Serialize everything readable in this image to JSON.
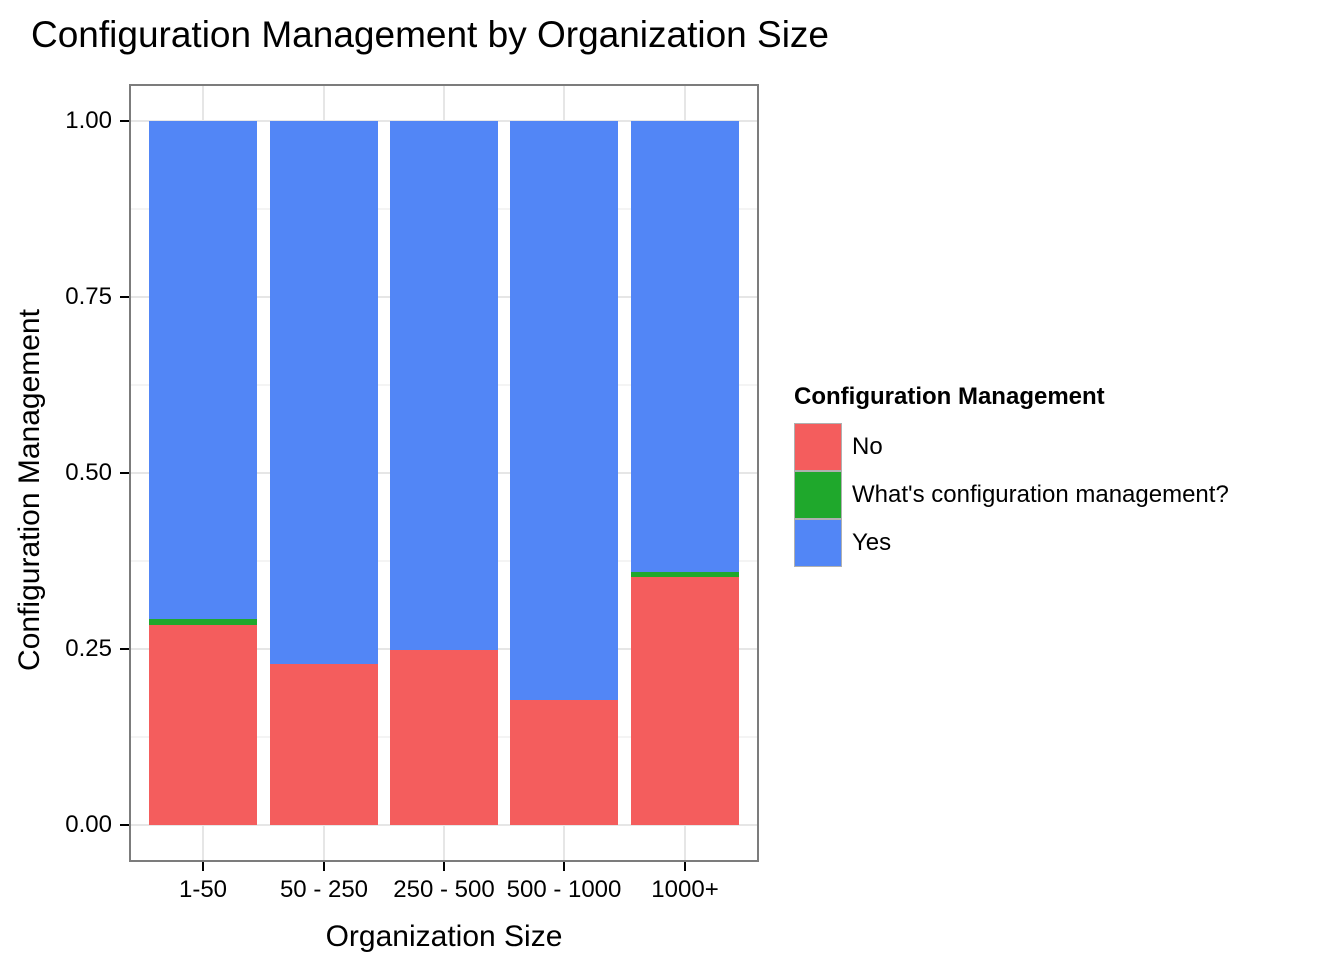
{
  "title": "Configuration Management by Organization Size",
  "chart_data": {
    "type": "bar",
    "stacked": true,
    "normalized": true,
    "title": "Configuration Management by Organization Size",
    "xlabel": "Organization Size",
    "ylabel": "Configuration Management",
    "categories": [
      "1-50",
      "50 - 250",
      "250 - 500",
      "500 - 1000",
      "1000+"
    ],
    "series": [
      {
        "name": "No",
        "color": "#f45d5d",
        "values": [
          0.284,
          0.228,
          0.248,
          0.178,
          0.353
        ]
      },
      {
        "name": "What's configuration management?",
        "color": "#1fa82c",
        "values": [
          0.009,
          0.0,
          0.0,
          0.0,
          0.007
        ]
      },
      {
        "name": "Yes",
        "color": "#5286f6",
        "values": [
          0.707,
          0.772,
          0.752,
          0.822,
          0.64
        ]
      }
    ],
    "ylim": [
      0,
      1
    ],
    "yticks": {
      "major": [
        0,
        0.25,
        0.5,
        0.75,
        1.0
      ],
      "minor": [
        0.125,
        0.375,
        0.625,
        0.875
      ],
      "labels": [
        "0.00",
        "0.25",
        "0.50",
        "0.75",
        "1.00"
      ]
    },
    "grid": "horizontal major+minor, vertical major at category centers",
    "legend_position": "right",
    "legend_title": "Configuration Management"
  },
  "legend": {
    "title": "Configuration Management",
    "items": [
      {
        "label": "No",
        "color": "#f45d5d"
      },
      {
        "label": "What's configuration management?",
        "color": "#1fa82c"
      },
      {
        "label": "Yes",
        "color": "#5286f6"
      }
    ]
  },
  "colors": {
    "no": "#f45d5d",
    "whats": "#1fa82c",
    "yes": "#5286f6",
    "panel_border": "#7c7c7c",
    "grid_major": "#e6e6e6",
    "grid_minor": "#f4f4f4"
  }
}
